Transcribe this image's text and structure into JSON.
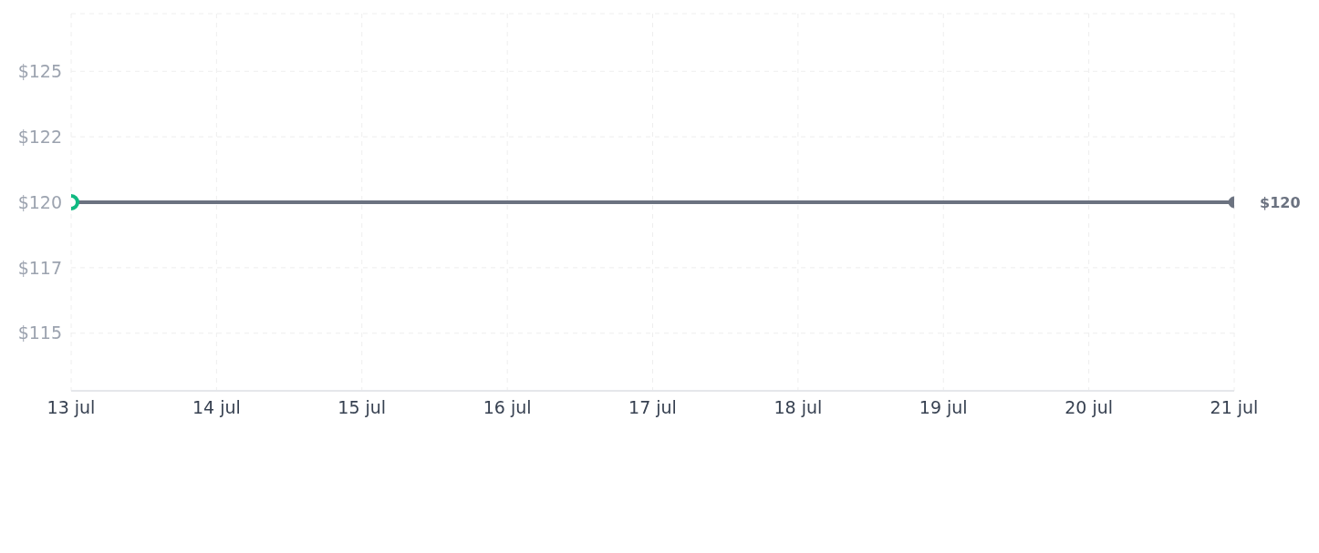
{
  "chart_data": {
    "type": "line",
    "x": [
      "--07-13",
      "--07-21"
    ],
    "series": [
      {
        "color": "#6b7280",
        "values": [
          120,
          120
        ],
        "value_labels": [
          null,
          "$120"
        ]
      },
      {
        "type": "scatter",
        "color": "#10b981",
        "x": [
          "--07-13"
        ],
        "values": [
          120
        ]
      }
    ],
    "xlim": [
      "--07-13",
      "--07-21"
    ],
    "xticks": [
      {
        "value": "--07-13",
        "label": "13 jul"
      },
      {
        "value": "--07-14",
        "label": "14 jul"
      },
      {
        "value": "--07-15",
        "label": "15 jul"
      },
      {
        "value": "--07-16",
        "label": "16 jul"
      },
      {
        "value": "--07-17",
        "label": "17 jul"
      },
      {
        "value": "--07-18",
        "label": "18 jul"
      },
      {
        "value": "--07-19",
        "label": "19 jul"
      },
      {
        "value": "--07-20",
        "label": "20 jul"
      },
      {
        "value": "--07-21",
        "label": "21 jul"
      }
    ],
    "ylim": [
      112.8,
      127.2
    ],
    "yticks": [
      {
        "value": 115,
        "label": "$115"
      },
      {
        "value": 117.5,
        "label": "$117"
      },
      {
        "value": 120,
        "label": "$120"
      },
      {
        "value": 122.5,
        "label": "$122"
      },
      {
        "value": 125,
        "label": "$125"
      }
    ],
    "grid": true,
    "marker": "circle",
    "line_style": "solid"
  }
}
